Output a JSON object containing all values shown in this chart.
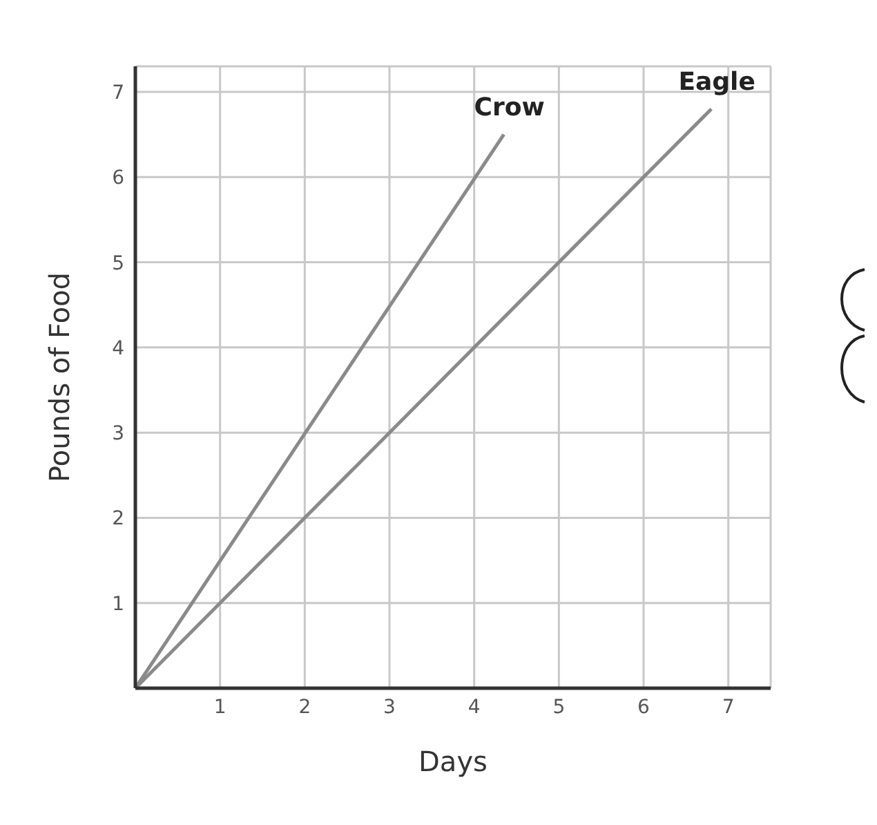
{
  "chart_data": {
    "type": "line",
    "xlabel": "Days",
    "ylabel": "Pounds of Food",
    "series": [
      {
        "name": "Crow",
        "color": "#8a8a8a",
        "x": [
          0,
          4.35
        ],
        "values": [
          0,
          6.5
        ]
      },
      {
        "name": "Eagle",
        "color": "#8a8a8a",
        "x": [
          0,
          6.8
        ],
        "values": [
          0,
          6.8
        ]
      }
    ],
    "xlim": [
      0,
      7.5
    ],
    "ylim": [
      0,
      7.3
    ],
    "xticks": [
      1,
      2,
      3,
      4,
      5,
      6,
      7
    ],
    "yticks": [
      1,
      2,
      3,
      4,
      5,
      6,
      7
    ],
    "grid": true,
    "legend": false,
    "marker": "none",
    "line_style": "solid"
  }
}
